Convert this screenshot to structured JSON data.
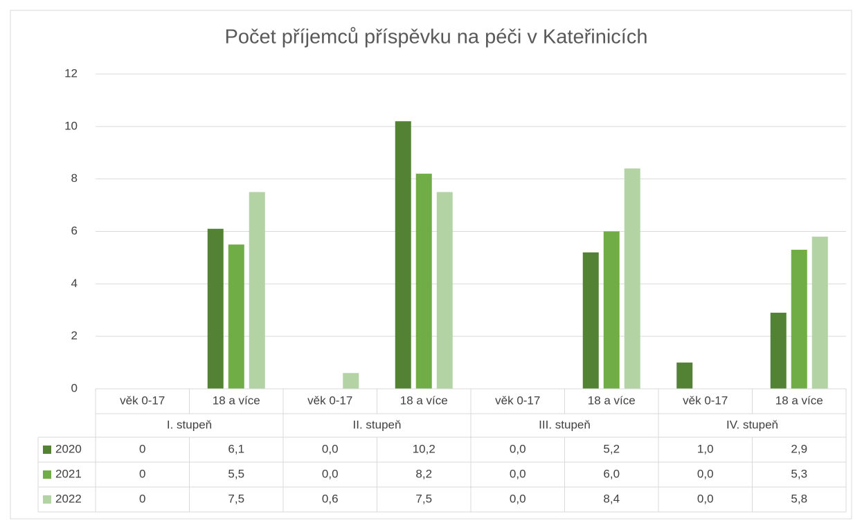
{
  "chart_data": {
    "type": "bar",
    "title": "Počet příjemců příspěvku na péči v Kateřinicích",
    "categories": [
      "věk 0-17",
      "18 a více",
      "věk 0-17",
      "18 a více",
      "věk 0-17",
      "18 a více",
      "věk 0-17",
      "18 a více"
    ],
    "groups": [
      "I. stupeň",
      "II. stupeň",
      "III. stupeň",
      "IV. stupeň"
    ],
    "series": [
      {
        "name": "2020",
        "color": "#548235",
        "values": [
          0,
          6.1,
          0,
          10.2,
          0,
          5.2,
          1,
          2.9
        ],
        "value_labels": [
          "0",
          "6,1",
          "0,0",
          "10,2",
          "0,0",
          "5,2",
          "1,0",
          "2,9"
        ]
      },
      {
        "name": "2021",
        "color": "#70ad47",
        "values": [
          0,
          5.5,
          0,
          8.2,
          0,
          6.0,
          0,
          5.3
        ],
        "value_labels": [
          "0",
          "5,5",
          "0,0",
          "8,2",
          "0,0",
          "6,0",
          "0,0",
          "5,3"
        ]
      },
      {
        "name": "2022",
        "color": "#b4d3a4",
        "values": [
          0,
          7.5,
          0.6,
          7.5,
          0,
          8.4,
          0,
          5.8
        ],
        "value_labels": [
          "0",
          "7,5",
          "0,6",
          "7,5",
          "0,0",
          "8,4",
          "0,0",
          "5,8"
        ]
      }
    ],
    "ylim": [
      0,
      12
    ],
    "yticks": [
      0,
      2,
      4,
      6,
      8,
      10,
      12
    ],
    "grid": true,
    "data_table": true
  }
}
